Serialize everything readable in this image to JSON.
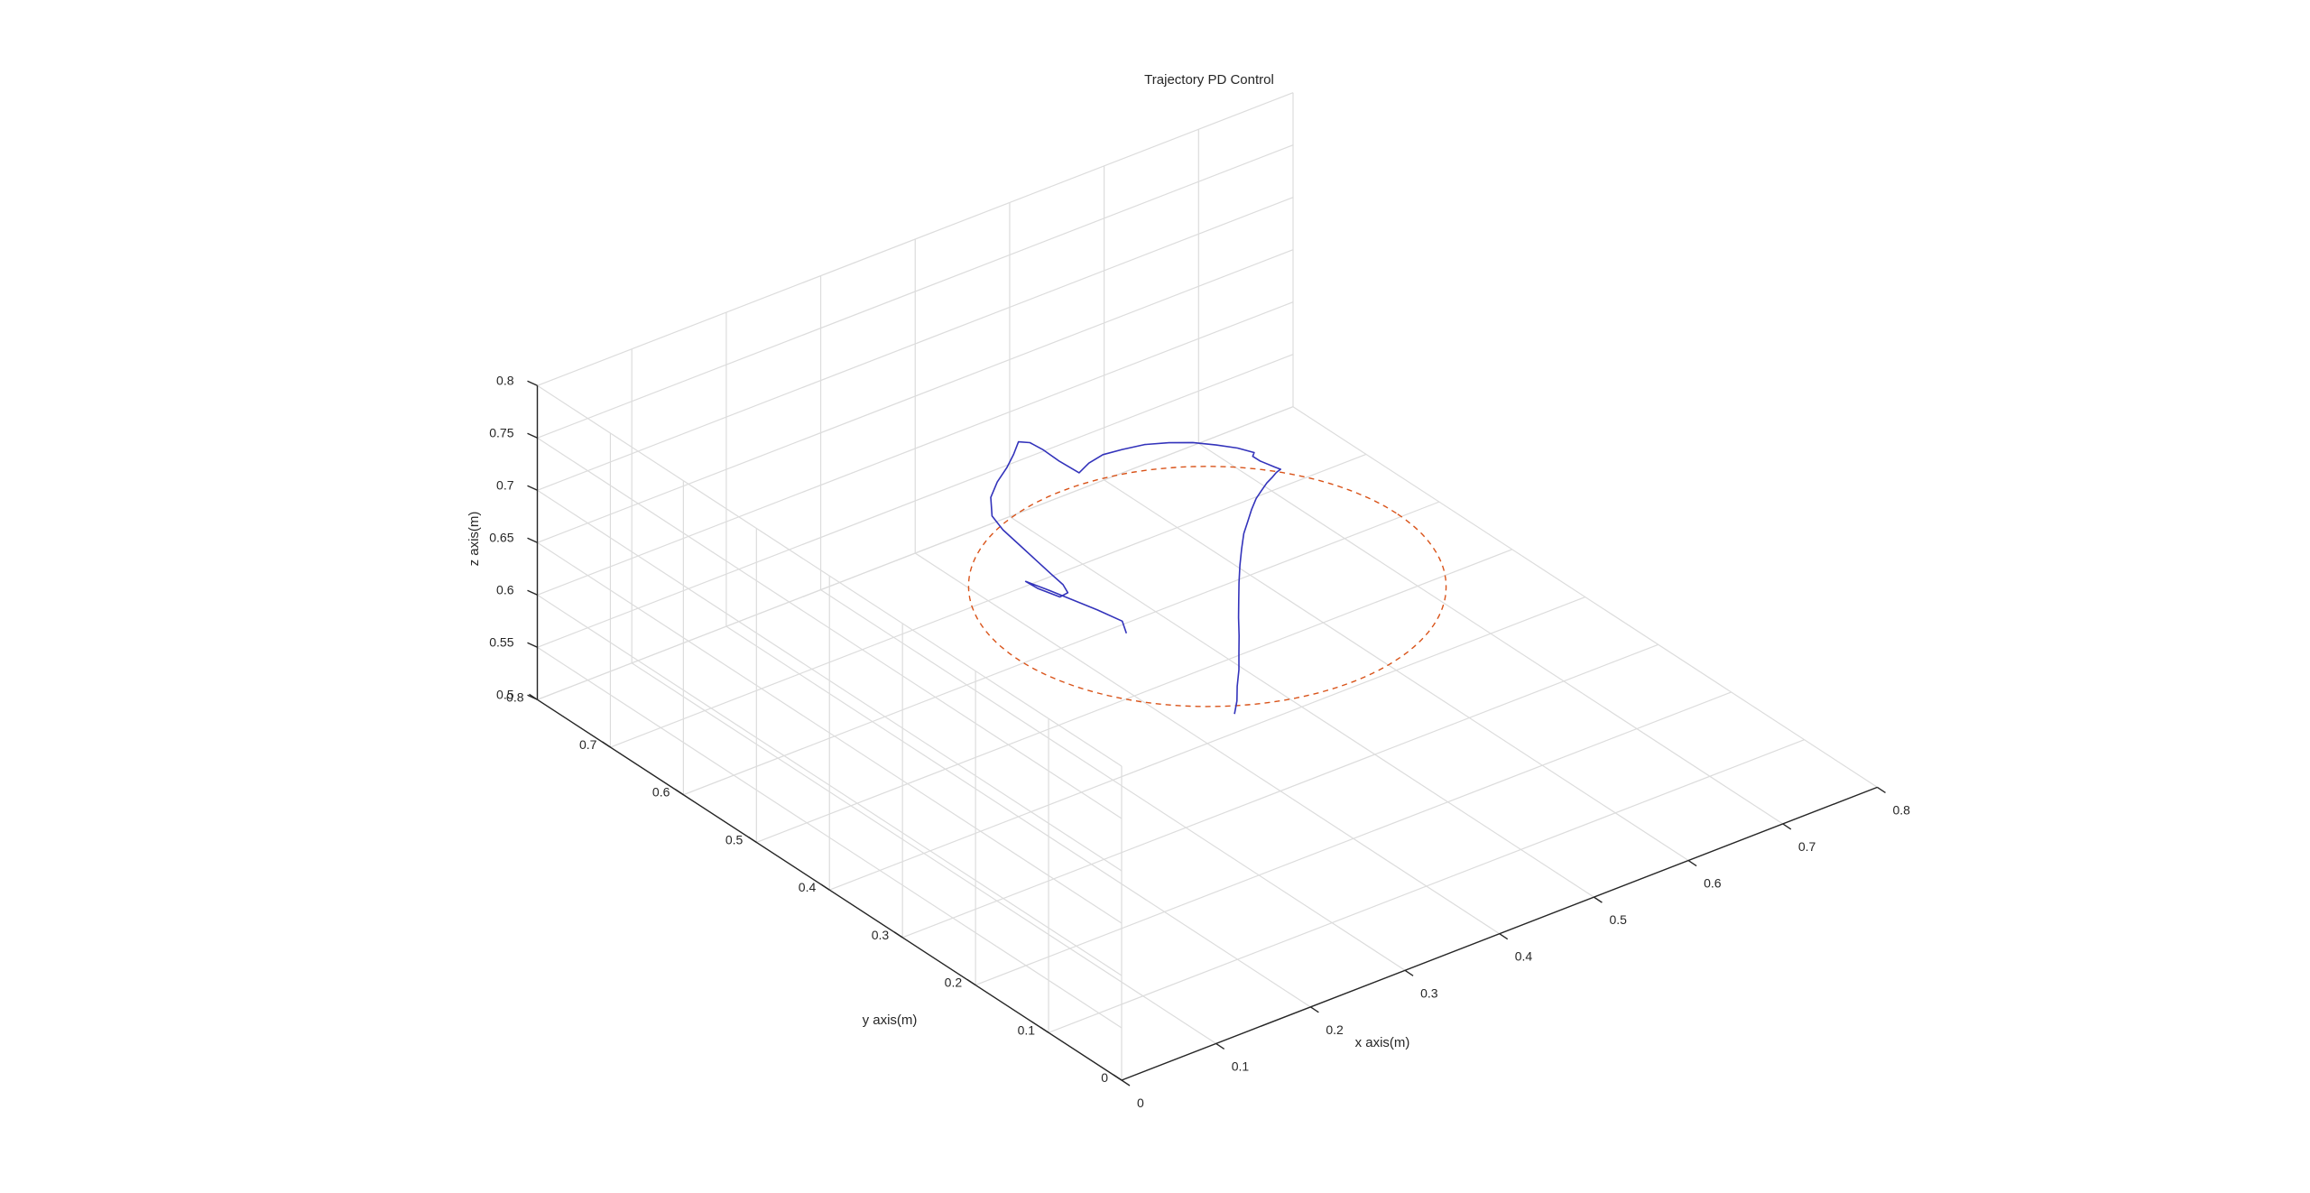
{
  "chart_data": {
    "type": "line3d",
    "title": "Trajectory PD Control",
    "xlabel": "x axis(m)",
    "ylabel": "y axis(m)",
    "zlabel": "z axis(m)",
    "xlim": [
      0,
      0.8
    ],
    "ylim": [
      0,
      0.8
    ],
    "zlim": [
      0.5,
      0.8
    ],
    "xticks": [
      "0",
      "0.1",
      "0.2",
      "0.3",
      "0.4",
      "0.5",
      "0.6",
      "0.7",
      "0.8"
    ],
    "yticks": [
      "0",
      "0.1",
      "0.2",
      "0.3",
      "0.4",
      "0.5",
      "0.6",
      "0.7",
      "0.8"
    ],
    "zticks": [
      "0.5",
      "0.55",
      "0.6",
      "0.65",
      "0.7",
      "0.75",
      "0.8"
    ],
    "grid": true,
    "series": [
      {
        "style": "dashed",
        "color": "#D95319",
        "shape": "circle",
        "center": [
          0.4,
          0.4,
          0.65
        ],
        "radius": 0.2
      },
      {
        "style": "solid",
        "color": "#3333BB",
        "x": [
          0.288,
          0.303,
          0.318,
          0.336,
          0.353,
          0.371,
          0.389,
          0.407,
          0.425,
          0.443,
          0.461,
          0.478,
          0.493,
          0.508,
          0.522,
          0.534,
          0.545,
          0.555,
          0.562,
          0.568,
          0.5665,
          0.5628,
          0.5627,
          0.5675,
          0.561,
          0.55,
          0.537,
          0.521,
          0.503,
          0.483,
          0.465,
          0.447,
          0.4307,
          0.4294,
          0.4303,
          0.4288,
          0.422,
          0.406,
          0.388,
          0.367,
          0.347,
          0.329,
          0.322,
          0.317,
          0.313,
          0.309,
          0.306,
          0.301,
          0.2915,
          0.2855,
          0.2846,
          0.2911,
          0.3031,
          0.3082,
          0.2985
        ],
        "y": [
          0.218,
          0.234,
          0.253,
          0.274,
          0.296,
          0.319,
          0.343,
          0.366,
          0.389,
          0.411,
          0.432,
          0.451,
          0.465,
          0.479,
          0.491,
          0.499,
          0.506,
          0.511,
          0.515,
          0.517,
          0.5225,
          0.5382,
          0.5483,
          0.5525,
          0.567,
          0.582,
          0.597,
          0.609,
          0.619,
          0.624,
          0.627,
          0.623,
          0.6153,
          0.6406,
          0.6637,
          0.6802,
          0.687,
          0.673,
          0.659,
          0.645,
          0.628,
          0.603,
          0.579,
          0.547,
          0.522,
          0.496,
          0.476,
          0.463,
          0.4615,
          0.4835,
          0.4994,
          0.4751,
          0.4251,
          0.3978,
          0.3795
        ],
        "z": [
          0.65,
          0.65,
          0.65,
          0.65,
          0.65,
          0.65,
          0.65,
          0.65,
          0.65,
          0.65,
          0.65,
          0.65,
          0.65,
          0.65,
          0.65,
          0.65,
          0.65,
          0.65,
          0.65,
          0.65,
          0.65,
          0.65,
          0.65,
          0.65,
          0.65,
          0.65,
          0.65,
          0.65,
          0.65,
          0.65,
          0.65,
          0.65,
          0.65,
          0.65,
          0.65,
          0.65,
          0.65,
          0.65,
          0.65,
          0.65,
          0.65,
          0.65,
          0.65,
          0.65,
          0.65,
          0.65,
          0.65,
          0.65,
          0.65,
          0.65,
          0.65,
          0.65,
          0.65,
          0.65,
          0.65
        ]
      }
    ]
  }
}
